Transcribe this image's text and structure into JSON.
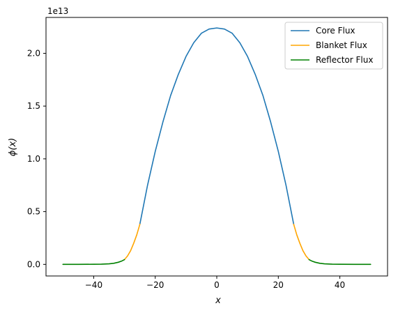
{
  "chart_data": {
    "type": "line",
    "title": "",
    "xlabel": "x",
    "ylabel": "ϕ(x)",
    "y_offset_text": "1e13",
    "y_scale_factor": 10000000000000.0,
    "xlim": [
      -55.5,
      55.5
    ],
    "ylim": [
      -0.11,
      2.34
    ],
    "x_ticks": [
      -40,
      -20,
      0,
      20,
      40
    ],
    "x_tick_labels": [
      "−40",
      "−20",
      "0",
      "20",
      "40"
    ],
    "y_ticks": [
      0.0,
      0.5,
      1.0,
      1.5,
      2.0
    ],
    "y_tick_labels": [
      "0.0",
      "0.5",
      "1.0",
      "1.5",
      "2.0"
    ],
    "grid": false,
    "legend_position": "top-right",
    "series": [
      {
        "name": "Core Flux",
        "color": "#1f77b4",
        "x": [
          -25,
          -22.5,
          -20,
          -17.5,
          -15,
          -12.5,
          -10,
          -7.5,
          -5,
          -2.5,
          0,
          2.5,
          5,
          7.5,
          10,
          12.5,
          15,
          17.5,
          20,
          22.5,
          25
        ],
        "y": [
          0.38,
          0.75,
          1.07,
          1.35,
          1.6,
          1.8,
          1.97,
          2.1,
          2.19,
          2.23,
          2.24,
          2.23,
          2.19,
          2.1,
          1.97,
          1.8,
          1.6,
          1.35,
          1.07,
          0.75,
          0.38
        ]
      },
      {
        "name": "Blanket Flux",
        "color": "#ffa500",
        "x": [
          -30,
          -29,
          -28,
          -27,
          -26,
          -25,
          25,
          26,
          27,
          28,
          29,
          30
        ],
        "y": [
          0.045,
          0.08,
          0.13,
          0.2,
          0.28,
          0.38,
          0.38,
          0.28,
          0.2,
          0.13,
          0.08,
          0.045
        ]
      },
      {
        "name": "Reflector Flux",
        "color": "#008000",
        "x": [
          -50,
          -45,
          -40,
          -37.5,
          -35,
          -33.5,
          -32,
          -31,
          -30,
          30,
          31,
          32,
          33.5,
          35,
          37.5,
          40,
          45,
          50
        ],
        "y": [
          0.0,
          0.0,
          0.001,
          0.002,
          0.005,
          0.01,
          0.02,
          0.03,
          0.045,
          0.045,
          0.03,
          0.02,
          0.01,
          0.005,
          0.002,
          0.001,
          0.0,
          0.0
        ]
      }
    ]
  }
}
